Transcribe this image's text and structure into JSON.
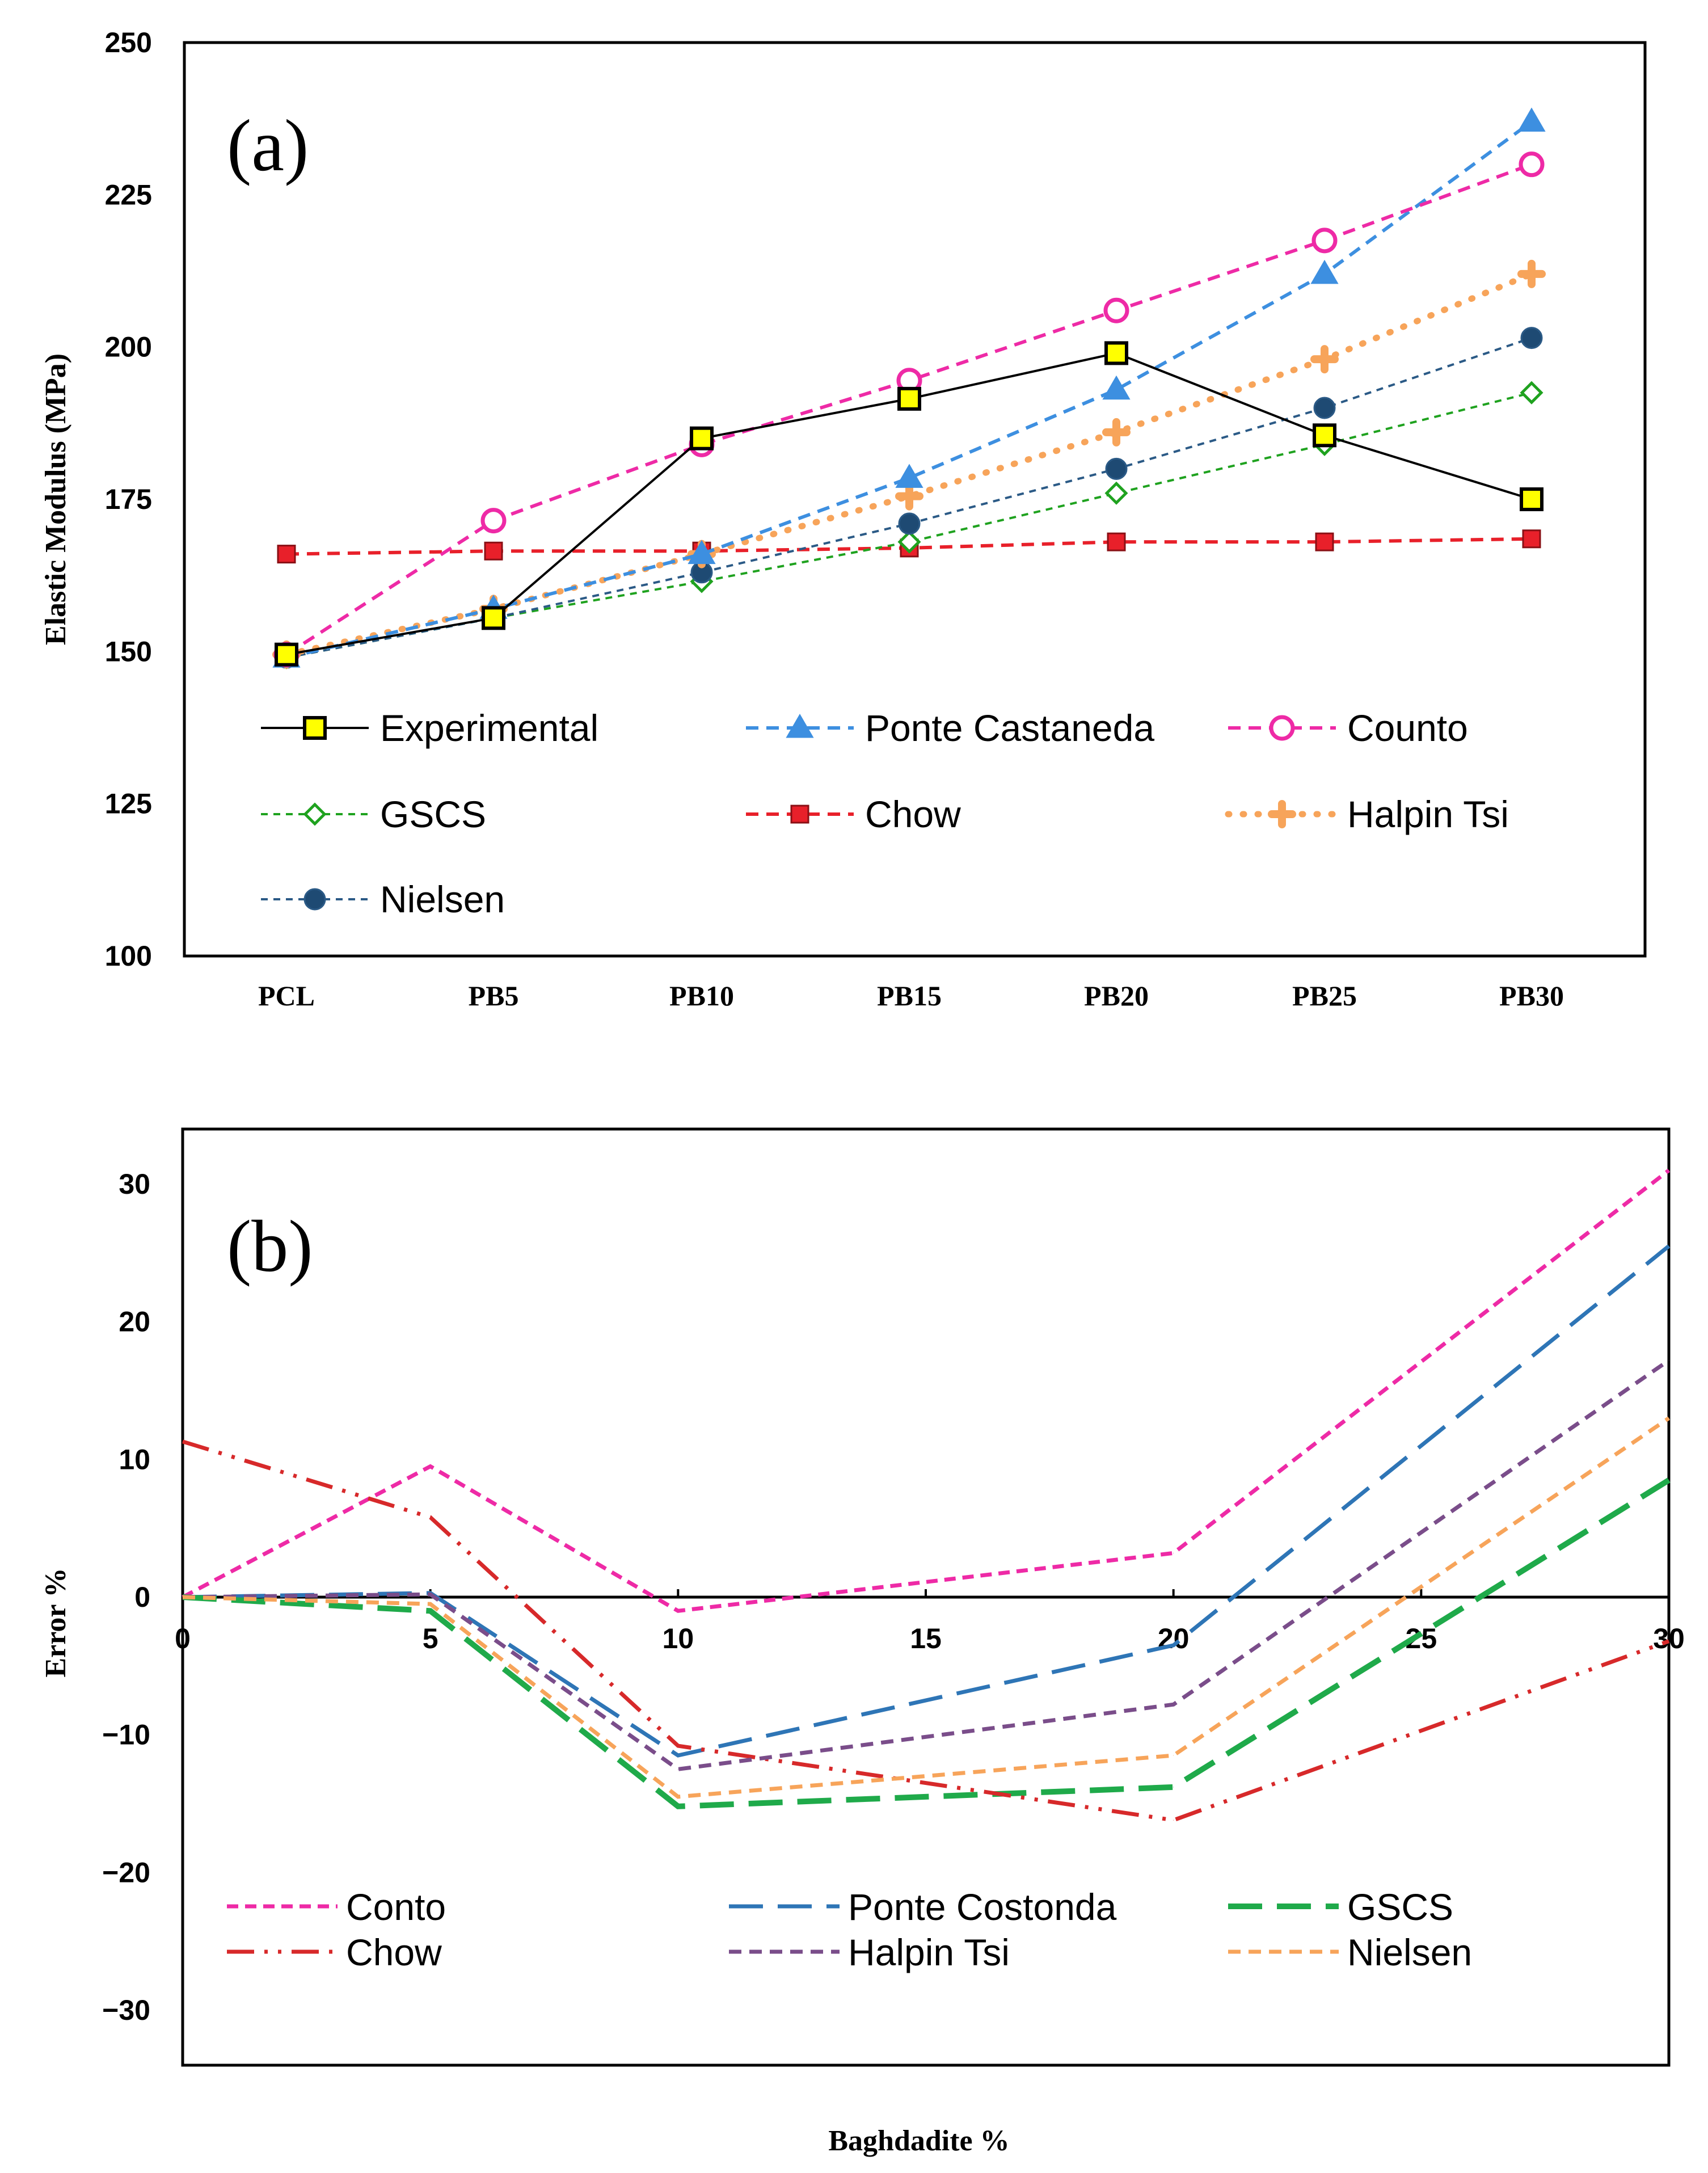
{
  "chart_data": [
    {
      "type": "line",
      "panel_label": "(a)",
      "ylabel": "Elastic Modulus (MPa)",
      "ylim": [
        100,
        250
      ],
      "yticks": [
        100,
        125,
        150,
        175,
        200,
        225,
        250
      ],
      "categories": [
        "PCL",
        "PB5",
        "PB10",
        "PB15",
        "PB20",
        "PB25",
        "PB30"
      ],
      "legend_position": "inside-bottom",
      "series": [
        {
          "name": "Experimental",
          "values": [
            149.5,
            155.5,
            185,
            191.5,
            199,
            185.5,
            175
          ],
          "color": "#000000",
          "dash": "solid",
          "marker": "square",
          "marker_fill": "#ffff00"
        },
        {
          "name": "Ponte Castaneda",
          "values": [
            149,
            157,
            166,
            178.5,
            193,
            212,
            237
          ],
          "color": "#3d8fe0",
          "dash": "dashed",
          "marker": "triangle",
          "marker_fill": "#3d8fe0"
        },
        {
          "name": "Counto",
          "values": [
            149.5,
            171.5,
            184,
            194.5,
            206,
            217.5,
            230
          ],
          "color": "#ee2aa6",
          "dash": "dashed",
          "marker": "circle-open",
          "marker_fill": "#ffffff"
        },
        {
          "name": "GSCS",
          "values": [
            149,
            155.5,
            161.5,
            168,
            176,
            184,
            192.5
          ],
          "color": "#1fa21f",
          "dash": "dotted",
          "marker": "diamond-open",
          "marker_fill": "#ffffff"
        },
        {
          "name": "Chow",
          "values": [
            166,
            166.5,
            166.5,
            167,
            168,
            168,
            168.5
          ],
          "color": "#e8202a",
          "dash": "dashed",
          "marker": "star",
          "marker_fill": "#e8202a"
        },
        {
          "name": "Halpin Tsi",
          "values": [
            149.5,
            157,
            166,
            175.5,
            186,
            198,
            212
          ],
          "color": "#f7a45a",
          "dash": "round-dotted",
          "marker": "plus",
          "marker_fill": "#f7a45a"
        },
        {
          "name": "Nielsen",
          "values": [
            149,
            155.5,
            163,
            171,
            180,
            190,
            201.5
          ],
          "color": "#2b5a86",
          "dash": "dotted",
          "marker": "circle",
          "marker_fill": "#1e4a73"
        }
      ]
    },
    {
      "type": "line",
      "panel_label": "(b)",
      "xlabel": "Baghdadite %",
      "ylabel": "Error %",
      "xlim": [
        0,
        30
      ],
      "ylim": [
        -34,
        34
      ],
      "xticks": [
        0,
        5,
        10,
        15,
        20,
        25,
        30
      ],
      "yticks": [
        30,
        20,
        10,
        0,
        -10,
        -20,
        -30
      ],
      "ytick_labels": [
        "30",
        "20",
        "10",
        "0",
        "−10",
        "−20",
        "−30"
      ],
      "legend_position": "inside-bottom",
      "x": [
        0,
        5,
        10,
        20,
        30
      ],
      "series": [
        {
          "name": "Conto",
          "values": [
            0,
            9.5,
            -1,
            3.2,
            31
          ],
          "color": "#ee2aa6",
          "dash": "short-dash"
        },
        {
          "name": "Ponte Costonda",
          "values": [
            0,
            0.3,
            -11.5,
            -3.5,
            25.5
          ],
          "color": "#2e75b6",
          "dash": "long-dash"
        },
        {
          "name": "GSCS",
          "values": [
            0,
            -1,
            -15.2,
            -13.8,
            8.5
          ],
          "color": "#1faa4a",
          "dash": "long-dash"
        },
        {
          "name": "Chow",
          "values": [
            11.3,
            5.8,
            -10.8,
            -16.2,
            -3.2
          ],
          "color": "#d7292a",
          "dash": "dash-dot-dot"
        },
        {
          "name": "Halpin Tsi",
          "values": [
            0,
            0.2,
            -12.5,
            -7.8,
            17.2
          ],
          "color": "#7a4d8a",
          "dash": "dashed"
        },
        {
          "name": "Nielsen",
          "values": [
            0,
            -0.5,
            -14.5,
            -11.5,
            13
          ],
          "color": "#f7a45a",
          "dash": "dashed"
        }
      ]
    }
  ]
}
